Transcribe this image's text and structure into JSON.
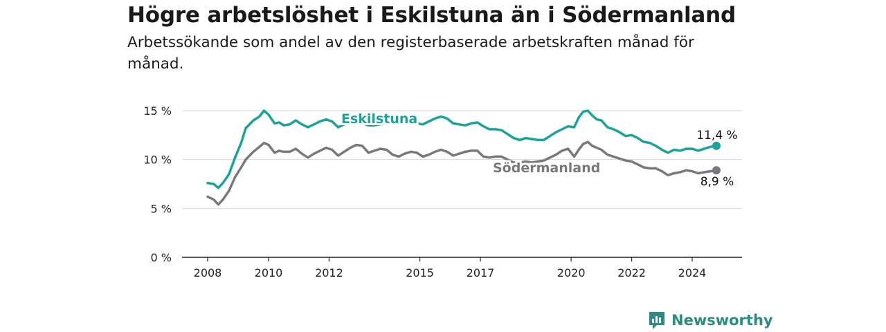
{
  "header": {
    "title": "Högre arbetslöshet i Eskilstuna än i Södermanland",
    "subtitle": "Arbetssökande som andel av den registerbaserade arbetskraften månad för månad."
  },
  "brand": {
    "name": "Newsworthy",
    "icon": "newsworthy-logo-icon",
    "color": "#2a8c83"
  },
  "chart_data": {
    "type": "line",
    "title": "Högre arbetslöshet i Eskilstuna än i Södermanland",
    "subtitle": "Arbetssökande som andel av den registerbaserade arbetskraften månad för månad.",
    "ylim": [
      0,
      15
    ],
    "yticks": [
      0,
      5,
      10,
      15
    ],
    "ytick_labels": [
      "0 %",
      "5 %",
      "10 %",
      "15 %"
    ],
    "xlim": [
      2008,
      2025.25
    ],
    "xticks": [
      2008,
      2010,
      2012,
      2015,
      2017,
      2020,
      2022,
      2024
    ],
    "xtick_labels": [
      "2008",
      "2010",
      "2012",
      "2015",
      "2017",
      "2020",
      "2022",
      "2024"
    ],
    "grid": true,
    "legend": "direct labels on lines",
    "series": [
      {
        "name": "Eskilstuna",
        "color": "#1aa397",
        "end_label": "11,4 %",
        "x": [
          2008.0,
          2008.2,
          2008.35,
          2008.5,
          2008.7,
          2008.9,
          2009.1,
          2009.25,
          2009.5,
          2009.7,
          2009.85,
          2010.0,
          2010.2,
          2010.35,
          2010.5,
          2010.7,
          2010.9,
          2011.1,
          2011.3,
          2011.5,
          2011.7,
          2011.9,
          2012.1,
          2012.3,
          2012.5,
          2012.7,
          2012.9,
          2013.1,
          2013.3,
          2013.5,
          2013.7,
          2013.9,
          2014.1,
          2014.3,
          2014.5,
          2014.7,
          2014.9,
          2015.1,
          2015.3,
          2015.5,
          2015.7,
          2015.9,
          2016.1,
          2016.3,
          2016.5,
          2016.7,
          2016.9,
          2017.1,
          2017.3,
          2017.5,
          2017.7,
          2017.9,
          2018.1,
          2018.3,
          2018.5,
          2018.7,
          2018.9,
          2019.1,
          2019.3,
          2019.5,
          2019.7,
          2019.9,
          2020.1,
          2020.25,
          2020.4,
          2020.55,
          2020.7,
          2020.85,
          2021.0,
          2021.2,
          2021.4,
          2021.6,
          2021.8,
          2022.0,
          2022.2,
          2022.4,
          2022.6,
          2022.8,
          2023.0,
          2023.2,
          2023.4,
          2023.6,
          2023.8,
          2024.0,
          2024.2,
          2024.4,
          2024.6,
          2024.8
        ],
        "values": [
          7.6,
          7.5,
          7.1,
          7.6,
          8.5,
          10.2,
          11.7,
          13.2,
          14.0,
          14.4,
          15.0,
          14.6,
          13.7,
          13.8,
          13.5,
          13.6,
          14.0,
          13.6,
          13.3,
          13.6,
          13.9,
          14.1,
          13.9,
          13.3,
          13.6,
          13.9,
          14.0,
          13.7,
          13.5,
          13.5,
          13.6,
          13.8,
          13.9,
          13.8,
          14.0,
          13.9,
          13.7,
          13.6,
          13.9,
          14.2,
          14.4,
          14.2,
          13.7,
          13.6,
          13.5,
          13.7,
          13.8,
          13.4,
          13.1,
          13.1,
          13.0,
          12.6,
          12.2,
          12.0,
          12.2,
          12.1,
          12.0,
          12.0,
          12.4,
          12.8,
          13.1,
          13.4,
          13.3,
          14.3,
          14.9,
          15.0,
          14.5,
          14.1,
          14.0,
          13.3,
          13.1,
          12.8,
          12.4,
          12.5,
          12.2,
          11.8,
          11.7,
          11.4,
          11.0,
          10.7,
          11.0,
          10.9,
          11.1,
          11.1,
          10.9,
          11.1,
          11.3,
          11.4
        ]
      },
      {
        "name": "Södermanland",
        "color": "#78787d",
        "end_label": "8,9 %",
        "x": [
          2008.0,
          2008.2,
          2008.35,
          2008.5,
          2008.7,
          2008.9,
          2009.1,
          2009.25,
          2009.5,
          2009.7,
          2009.85,
          2010.0,
          2010.2,
          2010.35,
          2010.5,
          2010.7,
          2010.9,
          2011.1,
          2011.3,
          2011.5,
          2011.7,
          2011.9,
          2012.1,
          2012.3,
          2012.5,
          2012.7,
          2012.9,
          2013.1,
          2013.3,
          2013.5,
          2013.7,
          2013.9,
          2014.1,
          2014.3,
          2014.5,
          2014.7,
          2014.9,
          2015.1,
          2015.3,
          2015.5,
          2015.7,
          2015.9,
          2016.1,
          2016.3,
          2016.5,
          2016.7,
          2016.9,
          2017.1,
          2017.3,
          2017.5,
          2017.7,
          2017.9,
          2018.1,
          2018.3,
          2018.5,
          2018.7,
          2018.9,
          2019.1,
          2019.3,
          2019.5,
          2019.7,
          2019.9,
          2020.1,
          2020.25,
          2020.4,
          2020.55,
          2020.7,
          2020.85,
          2021.0,
          2021.2,
          2021.4,
          2021.6,
          2021.8,
          2022.0,
          2022.2,
          2022.4,
          2022.6,
          2022.8,
          2023.0,
          2023.2,
          2023.4,
          2023.6,
          2023.8,
          2024.0,
          2024.2,
          2024.4,
          2024.6,
          2024.8
        ],
        "values": [
          6.2,
          5.9,
          5.4,
          5.9,
          6.8,
          8.2,
          9.2,
          10.0,
          10.8,
          11.3,
          11.7,
          11.5,
          10.7,
          10.9,
          10.8,
          10.8,
          11.1,
          10.6,
          10.2,
          10.6,
          10.9,
          11.2,
          11.0,
          10.4,
          10.8,
          11.2,
          11.5,
          11.4,
          10.7,
          10.9,
          11.1,
          11.0,
          10.5,
          10.3,
          10.6,
          10.8,
          10.7,
          10.3,
          10.5,
          10.8,
          11.0,
          10.8,
          10.4,
          10.6,
          10.8,
          10.9,
          10.9,
          10.3,
          10.2,
          10.3,
          10.3,
          10.0,
          9.7,
          9.7,
          9.8,
          9.7,
          9.8,
          9.9,
          10.2,
          10.5,
          10.9,
          11.1,
          10.3,
          11.0,
          11.6,
          11.8,
          11.4,
          11.2,
          11.0,
          10.5,
          10.3,
          10.1,
          9.9,
          9.8,
          9.5,
          9.2,
          9.1,
          9.1,
          8.8,
          8.4,
          8.6,
          8.7,
          8.9,
          8.8,
          8.6,
          8.7,
          8.8,
          8.9
        ]
      }
    ]
  }
}
